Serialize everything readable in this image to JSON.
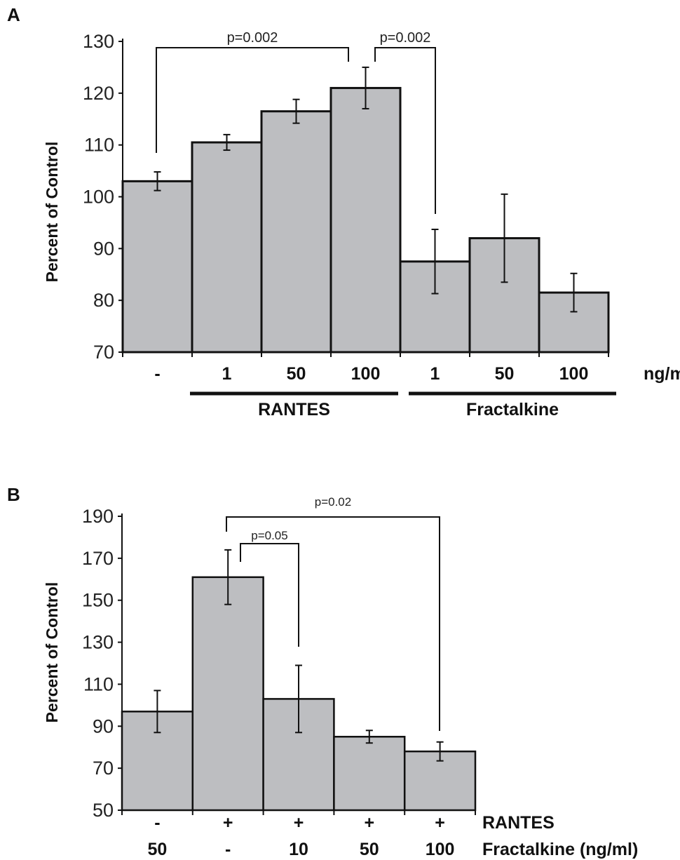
{
  "chart_data": [
    {
      "type": "bar",
      "panel": "A",
      "ylabel": "Percent  of Control",
      "ylim": [
        70,
        130
      ],
      "yticks": [
        70,
        80,
        90,
        100,
        110,
        120,
        130
      ],
      "unit_label": "ng/ml",
      "categories": [
        "-",
        "1",
        "50",
        "100",
        "1",
        "50",
        "100"
      ],
      "values": [
        103,
        110.5,
        116.5,
        121,
        87.5,
        92,
        81.5
      ],
      "error": [
        1.8,
        1.5,
        2.3,
        4,
        6.2,
        8.5,
        3.7
      ],
      "groups": [
        {
          "label": "RANTES",
          "from": 1,
          "to": 3
        },
        {
          "label": "Fractalkine",
          "from": 4,
          "to": 6
        }
      ],
      "annotations": [
        {
          "text": "p=0.002",
          "from": 0,
          "to": 3
        },
        {
          "text": "p=0.002",
          "from": 3,
          "to": 4
        }
      ],
      "bar_color": "#bdbec1"
    },
    {
      "type": "bar",
      "panel": "B",
      "ylabel": "Percent  of Control",
      "ylim": [
        50,
        190
      ],
      "yticks": [
        50,
        70,
        90,
        110,
        130,
        150,
        170,
        190
      ],
      "rows": [
        {
          "label": "RANTES",
          "values": [
            "-",
            "+",
            "+",
            "+",
            "+"
          ]
        },
        {
          "label": "Fractalkine (ng/ml)",
          "values": [
            "50",
            "-",
            "10",
            "50",
            "100"
          ]
        }
      ],
      "values": [
        97,
        161,
        103,
        85,
        78
      ],
      "error": [
        10,
        13,
        16,
        3,
        4.5
      ],
      "annotations": [
        {
          "text": "p=0.05",
          "from": 1,
          "to": 2
        },
        {
          "text": "p=0.02",
          "from": 1,
          "to": 4
        }
      ],
      "bar_color": "#bdbec1"
    }
  ]
}
